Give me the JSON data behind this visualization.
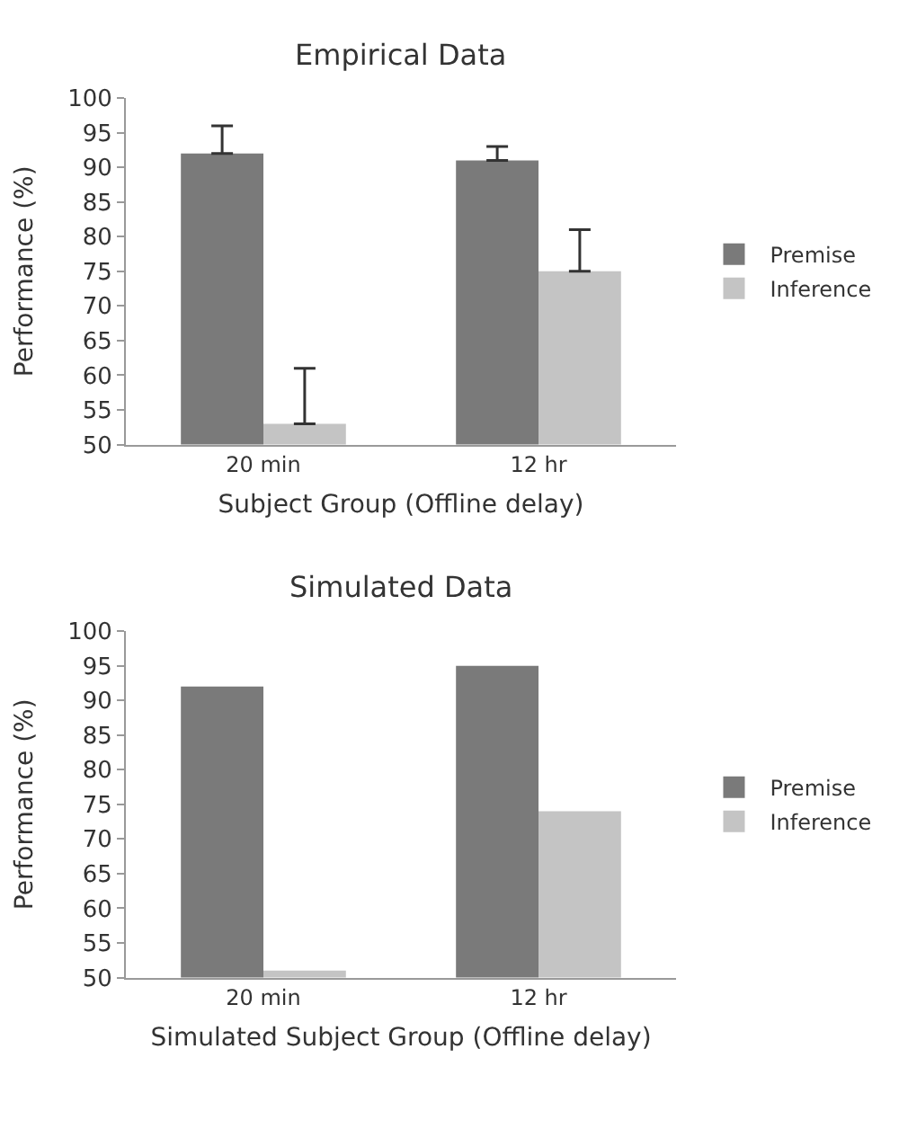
{
  "chart_data": [
    {
      "type": "bar",
      "title": "Empirical Data",
      "xlabel": "Subject Group (Offline delay)",
      "ylabel": "Performance (%)",
      "categories": [
        "20 min",
        "12 hr"
      ],
      "ylim": [
        50,
        100
      ],
      "yticks": [
        50,
        55,
        60,
        65,
        70,
        75,
        80,
        85,
        90,
        95,
        100
      ],
      "legend": "right",
      "series": [
        {
          "name": "Premise",
          "color": "#7a7a7a",
          "values": [
            92,
            91
          ],
          "errors": [
            [
              92,
              96
            ],
            [
              91,
              93
            ]
          ]
        },
        {
          "name": "Inference",
          "color": "#c4c4c4",
          "values": [
            53,
            75
          ],
          "errors": [
            [
              53,
              61
            ],
            [
              75,
              81
            ]
          ]
        }
      ]
    },
    {
      "type": "bar",
      "title": "Simulated Data",
      "xlabel": "Simulated Subject Group (Offline delay)",
      "ylabel": "Performance (%)",
      "categories": [
        "20 min",
        "12 hr"
      ],
      "ylim": [
        50,
        100
      ],
      "yticks": [
        50,
        55,
        60,
        65,
        70,
        75,
        80,
        85,
        90,
        95,
        100
      ],
      "legend": "right",
      "series": [
        {
          "name": "Premise",
          "color": "#7a7a7a",
          "values": [
            92,
            95
          ]
        },
        {
          "name": "Inference",
          "color": "#c4c4c4",
          "values": [
            51,
            74
          ]
        }
      ]
    }
  ]
}
